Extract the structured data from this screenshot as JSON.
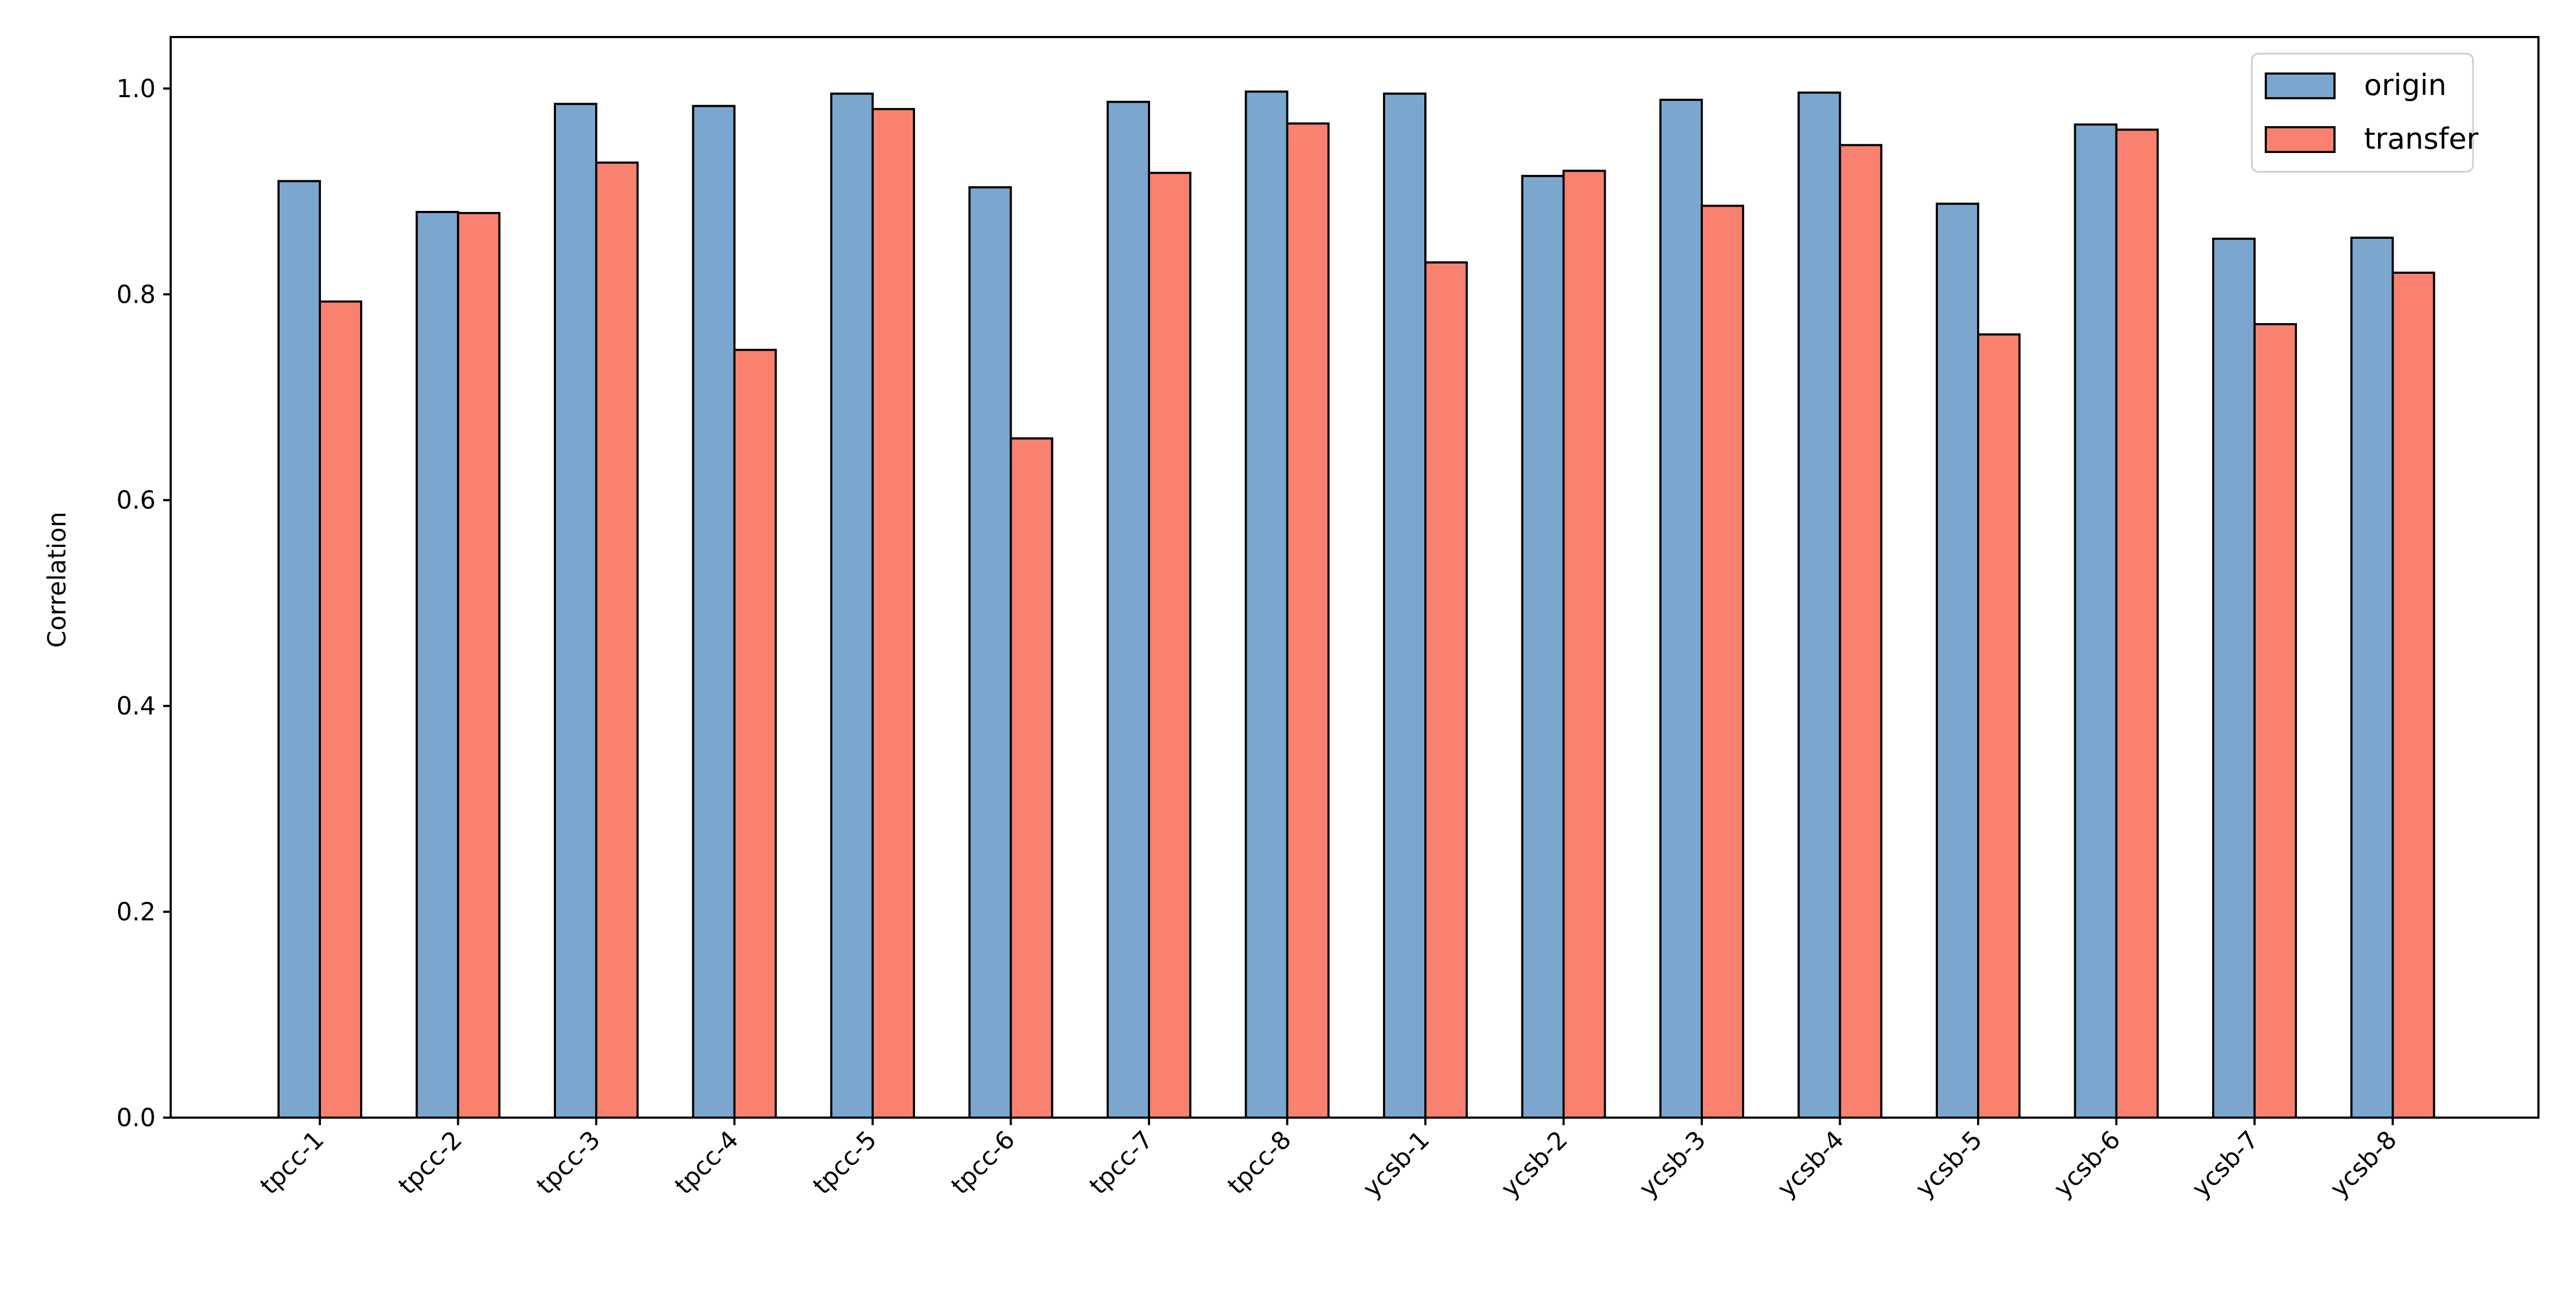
{
  "chart_data": {
    "type": "bar",
    "title": "",
    "xlabel": "",
    "ylabel": "Correlation",
    "ylim": [
      0,
      1.05
    ],
    "yticks": [
      "0.0",
      "0.2",
      "0.4",
      "0.6",
      "0.8",
      "1.0"
    ],
    "categories": [
      "tpcc-1",
      "tpcc-2",
      "tpcc-3",
      "tpcc-4",
      "tpcc-5",
      "tpcc-6",
      "tpcc-7",
      "tpcc-8",
      "ycsb-1",
      "ycsb-2",
      "ycsb-3",
      "ycsb-4",
      "ycsb-5",
      "ycsb-6",
      "ycsb-7",
      "ycsb-8"
    ],
    "series": [
      {
        "name": "origin",
        "color": "#7BA7CE",
        "values": [
          0.91,
          0.88,
          0.985,
          0.983,
          0.995,
          0.904,
          0.987,
          0.997,
          0.995,
          0.915,
          0.989,
          0.996,
          0.888,
          0.965,
          0.854,
          0.855
        ]
      },
      {
        "name": "transfer",
        "color": "#F98170",
        "values": [
          0.793,
          0.879,
          0.928,
          0.746,
          0.98,
          0.66,
          0.918,
          0.966,
          0.831,
          0.92,
          0.886,
          0.945,
          0.761,
          0.96,
          0.771,
          0.821
        ]
      }
    ],
    "grid": false,
    "legend_position": "top-right"
  }
}
